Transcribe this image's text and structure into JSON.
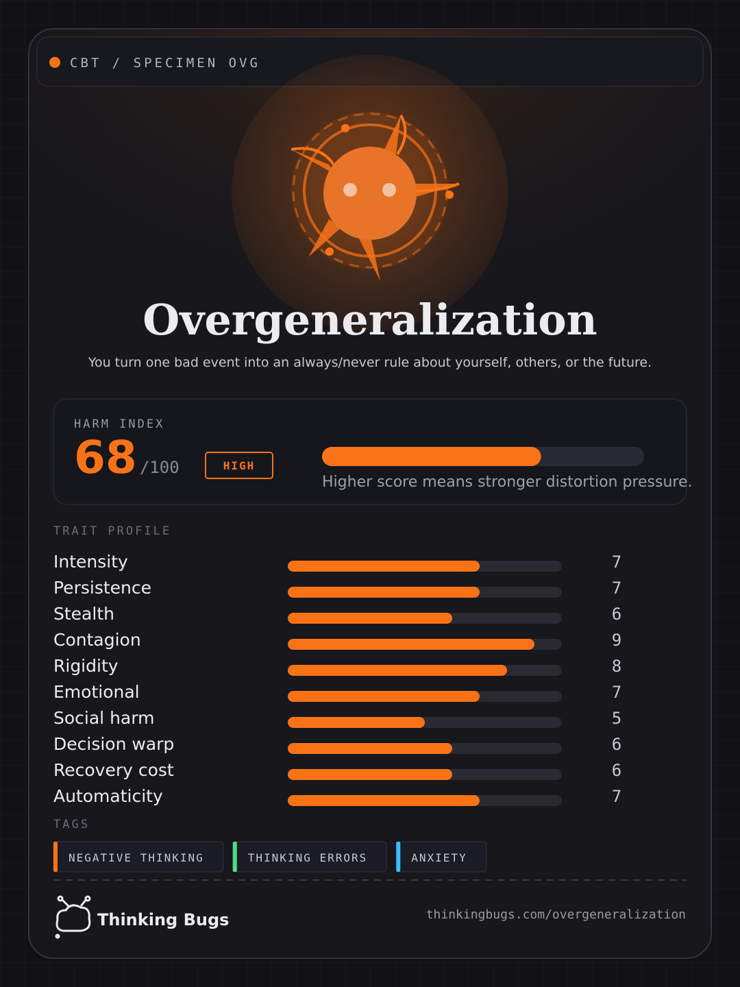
{
  "header": {
    "code": "CBT / SPECIMEN OVG"
  },
  "title": "Overgeneralization",
  "subtitle": "You turn one bad event into an always/never rule about yourself, others, or the future.",
  "harm_index": {
    "label": "HARM INDEX",
    "value": 68,
    "scale": {
      "value": 100,
      "label": "/100"
    },
    "level": "HIGH",
    "caption": "Higher score means stronger distortion pressure.",
    "color": "#f97316"
  },
  "traits": {
    "label": "TRAIT PROFILE",
    "xlim": [
      0,
      10
    ],
    "color": "#f97316",
    "items": [
      {
        "name": "Intensity",
        "value": 7
      },
      {
        "name": "Persistence",
        "value": 7
      },
      {
        "name": "Stealth",
        "value": 6
      },
      {
        "name": "Contagion",
        "value": 9
      },
      {
        "name": "Rigidity",
        "value": 8
      },
      {
        "name": "Emotional",
        "value": 7
      },
      {
        "name": "Social harm",
        "value": 5
      },
      {
        "name": "Decision warp",
        "value": 6
      },
      {
        "name": "Recovery cost",
        "value": 6
      },
      {
        "name": "Automaticity",
        "value": 7
      }
    ]
  },
  "tags": {
    "label": "TAGS",
    "items": [
      {
        "label": "NEGATIVE THINKING",
        "color": "#f97316"
      },
      {
        "label": "THINKING ERRORS",
        "color": "#4ade80"
      },
      {
        "label": "ANXIETY",
        "color": "#38bdf8"
      }
    ]
  },
  "footer": {
    "brand": "Thinking Bugs",
    "url": "thinkingbugs.com/overgeneralization"
  }
}
